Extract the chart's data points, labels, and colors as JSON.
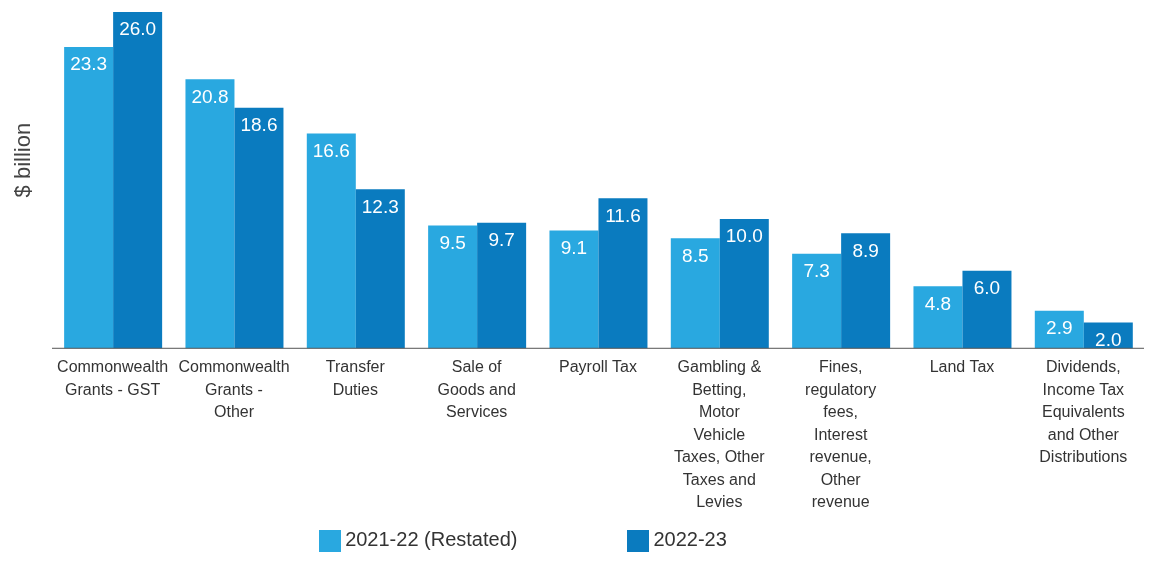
{
  "chart_data": {
    "type": "bar",
    "ylabel": "$ billion",
    "categories": [
      "Commonwealth Grants - GST",
      "Commonwealth Grants - Other",
      "Transfer Duties",
      "Sale of Goods and Services",
      "Payroll Tax",
      "Gambling & Betting, Motor Vehicle Taxes, Other Taxes and Levies",
      "Fines, regulatory fees, Interest revenue, Other revenue",
      "Land Tax",
      "Dividends, Income Tax Equivalents and Other Distributions"
    ],
    "series": [
      {
        "name": "2021-22 (Restated)",
        "color": "#29a8e0",
        "values": [
          23.3,
          20.8,
          16.6,
          9.5,
          9.1,
          8.5,
          7.3,
          4.8,
          2.9
        ],
        "value_labels": [
          "23.3",
          "20.8",
          "16.6",
          "9.5",
          "9.1",
          "8.5",
          "7.3",
          "4.8",
          "2.9"
        ]
      },
      {
        "name": "2022-23",
        "color": "#0a7bbf",
        "values": [
          26.0,
          18.6,
          12.3,
          9.7,
          11.6,
          10.0,
          8.9,
          6.0,
          2.0
        ],
        "value_labels": [
          "26.0",
          "18.6",
          "12.3",
          "9.7",
          "11.6",
          "10.0",
          "8.9",
          "6.0",
          "2.0"
        ]
      }
    ],
    "legend": "bottom",
    "grid": false
  }
}
